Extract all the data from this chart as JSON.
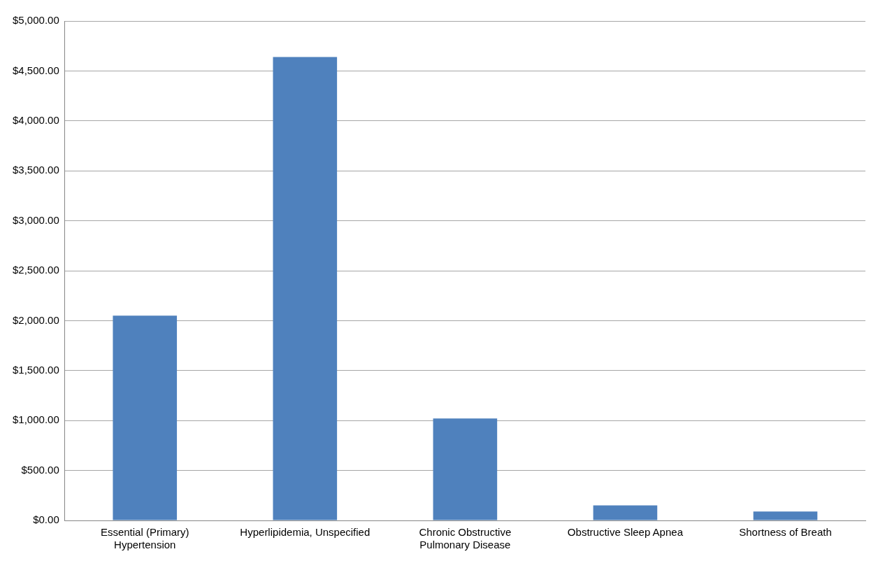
{
  "chart_data": {
    "type": "bar",
    "categories": [
      "Essential (Primary) Hypertension",
      "Hyperlipidemia, Unspecified",
      "Chronic Obstructive Pulmonary Disease",
      "Obstructive Sleep Apnea",
      "Shortness of Breath"
    ],
    "values": [
      2050,
      4640,
      1020,
      150,
      90
    ],
    "color": "#4f81bd",
    "ylim": [
      0,
      5000
    ],
    "yticks": [
      {
        "value": 0,
        "label": "$0.00"
      },
      {
        "value": 500,
        "label": "$500.00"
      },
      {
        "value": 1000,
        "label": "$1,000.00"
      },
      {
        "value": 1500,
        "label": "$1,500.00"
      },
      {
        "value": 2000,
        "label": "$2,000.00"
      },
      {
        "value": 2500,
        "label": "$2,500.00"
      },
      {
        "value": 3000,
        "label": "$3,000.00"
      },
      {
        "value": 3500,
        "label": "$3,500.00"
      },
      {
        "value": 4000,
        "label": "$4,000.00"
      },
      {
        "value": 4500,
        "label": "$4,500.00"
      },
      {
        "value": 5000,
        "label": "$5,000.00"
      }
    ],
    "grid": "y",
    "legend": false
  }
}
